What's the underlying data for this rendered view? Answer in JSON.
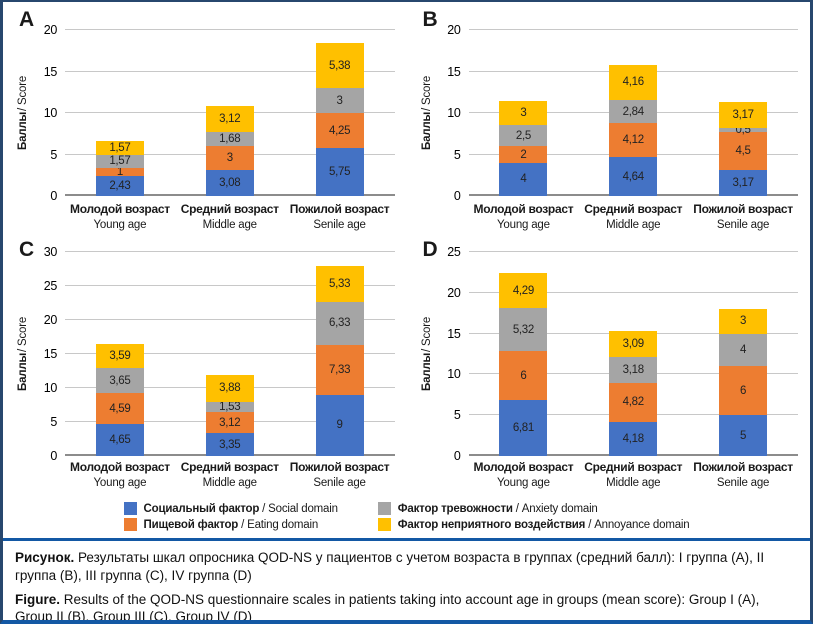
{
  "caption": {
    "ru_lead": "Рисунок.",
    "ru_text": " Результаты шкал опросника QOD-NS у пациентов с учетом возраста в группах (средний балл): I группа (A), II группа (B), III группа (C), IV группа (D)",
    "en_lead": "Figure.",
    "en_text": " Results of the QOD-NS questionnaire scales in patients taking into account age in groups (mean score): Group I (A), Group II (B), Group III (C), Group IV (D)"
  },
  "colors": {
    "social_blue": "#4472C4",
    "eating_orange": "#ED7D31",
    "anxiety_gray": "#A5A5A5",
    "annoyance_yellow": "#FFC000",
    "frame_navy": "#27476E",
    "rule_blue": "#1358A4",
    "gridline_gray": "#C8C8C8"
  },
  "legend": {
    "items": [
      {
        "id": "social",
        "label_ru": "Социальный фактор",
        "label_en": "Social domain",
        "color": "#4472C4"
      },
      {
        "id": "eating",
        "label_ru": "Пищевой фактор",
        "label_en": "Eating domain",
        "color": "#ED7D31"
      },
      {
        "id": "anxiety",
        "label_ru": "Фактор тревожности",
        "label_en": "Anxiety domain",
        "color": "#A5A5A5"
      },
      {
        "id": "annoyance",
        "label_ru": "Фактор неприятного воздействия",
        "label_en": "Annoyance domain",
        "color": "#FFC000"
      }
    ]
  },
  "chart_data": [
    {
      "type": "bar",
      "stacked": true,
      "panel": "A",
      "ylabel": "Баллы / Score",
      "ylim": [
        0,
        20
      ],
      "yticks": [
        0,
        5,
        10,
        15,
        20
      ],
      "grid": true,
      "legend_position": "shared-bottom",
      "categories": [
        {
          "ru": "Молодой возраст",
          "en": "Young age"
        },
        {
          "ru": "Средний возраст",
          "en": "Middle age"
        },
        {
          "ru": "Пожилой возраст",
          "en": "Senile age"
        }
      ],
      "series": [
        {
          "name": "Социальный фактор / Social domain",
          "color": "#4472C4",
          "values": [
            2.43,
            3.08,
            5.75
          ]
        },
        {
          "name": "Пищевой фактор / Eating domain",
          "color": "#ED7D31",
          "values": [
            1,
            3,
            4.25
          ]
        },
        {
          "name": "Фактор тревожности / Anxiety domain",
          "color": "#A5A5A5",
          "values": [
            1.57,
            1.68,
            3
          ]
        },
        {
          "name": "Фактор неприятного воздействия / Annoyance domain",
          "color": "#FFC000",
          "values": [
            1.57,
            3.12,
            5.38
          ]
        }
      ]
    },
    {
      "type": "bar",
      "stacked": true,
      "panel": "B",
      "ylabel": "Баллы / Score",
      "ylim": [
        0,
        20
      ],
      "yticks": [
        0,
        5,
        10,
        15,
        20
      ],
      "grid": true,
      "legend_position": "shared-bottom",
      "categories": [
        {
          "ru": "Молодой возраст",
          "en": "Young age"
        },
        {
          "ru": "Средний возраст",
          "en": "Middle age"
        },
        {
          "ru": "Пожилой возраст",
          "en": "Senile age"
        }
      ],
      "series": [
        {
          "name": "Социальный фактор / Social domain",
          "color": "#4472C4",
          "values": [
            4,
            4.64,
            3.17
          ]
        },
        {
          "name": "Пищевой фактор / Eating domain",
          "color": "#ED7D31",
          "values": [
            2,
            4.12,
            4.5
          ]
        },
        {
          "name": "Фактор тревожности / Anxiety domain",
          "color": "#A5A5A5",
          "values": [
            2.5,
            2.84,
            0.5
          ]
        },
        {
          "name": "Фактор неприятного воздействия / Annoyance domain",
          "color": "#FFC000",
          "values": [
            3,
            4.16,
            3.17
          ]
        }
      ]
    },
    {
      "type": "bar",
      "stacked": true,
      "panel": "C",
      "ylabel": "Баллы / Score",
      "ylim": [
        0,
        30
      ],
      "yticks": [
        0,
        5,
        10,
        15,
        20,
        25,
        30
      ],
      "grid": true,
      "legend_position": "shared-bottom",
      "categories": [
        {
          "ru": "Молодой возраст",
          "en": "Young age"
        },
        {
          "ru": "Средний возраст",
          "en": "Middle age"
        },
        {
          "ru": "Пожилой возраст",
          "en": "Senile age"
        }
      ],
      "series": [
        {
          "name": "Социальный фактор / Social domain",
          "color": "#4472C4",
          "values": [
            4.65,
            3.35,
            9
          ]
        },
        {
          "name": "Пищевой фактор / Eating domain",
          "color": "#ED7D31",
          "values": [
            4.59,
            3.12,
            7.33
          ]
        },
        {
          "name": "Фактор тревожности / Anxiety domain",
          "color": "#A5A5A5",
          "values": [
            3.65,
            1.53,
            6.33
          ]
        },
        {
          "name": "Фактор неприятного воздействия / Annoyance domain",
          "color": "#FFC000",
          "values": [
            3.59,
            3.88,
            5.33
          ]
        }
      ]
    },
    {
      "type": "bar",
      "stacked": true,
      "panel": "D",
      "ylabel": "Баллы / Score",
      "ylim": [
        0,
        25
      ],
      "yticks": [
        0,
        5,
        10,
        15,
        20,
        25
      ],
      "grid": true,
      "legend_position": "shared-bottom",
      "categories": [
        {
          "ru": "Молодой возраст",
          "en": "Young age"
        },
        {
          "ru": "Средний возраст",
          "en": "Middle age"
        },
        {
          "ru": "Пожилой возраст",
          "en": "Senile age"
        }
      ],
      "series": [
        {
          "name": "Социальный фактор / Social domain",
          "color": "#4472C4",
          "values": [
            6.81,
            4.18,
            5
          ]
        },
        {
          "name": "Пищевой фактор / Eating domain",
          "color": "#ED7D31",
          "values": [
            6,
            4.82,
            6
          ]
        },
        {
          "name": "Фактор тревожности / Anxiety domain",
          "color": "#A5A5A5",
          "values": [
            5.32,
            3.18,
            4
          ]
        },
        {
          "name": "Фактор неприятного воздействия / Annoyance domain",
          "color": "#FFC000",
          "values": [
            4.29,
            3.09,
            3
          ]
        }
      ]
    }
  ]
}
